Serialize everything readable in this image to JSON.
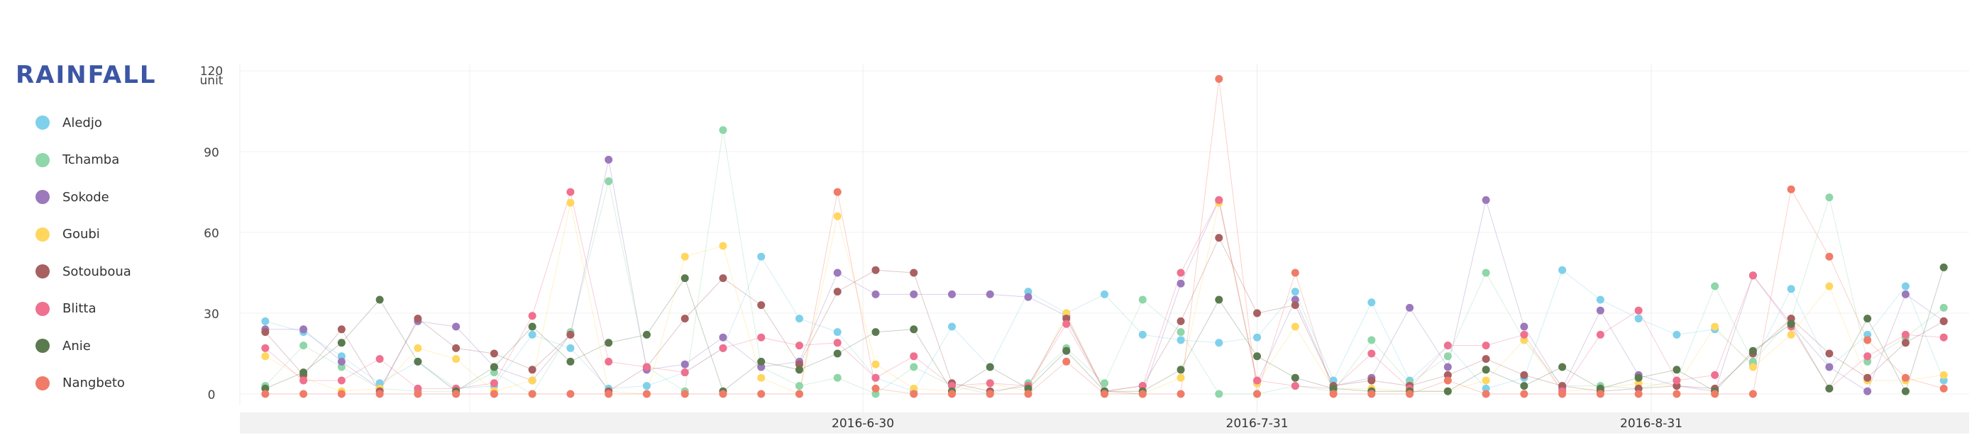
{
  "chart_data": {
    "type": "line",
    "title": "RAINFALL",
    "subtitle": "",
    "xlabel": "",
    "ylabel": "unit",
    "ylim": [
      0,
      120
    ],
    "yticks": [
      0,
      30,
      60,
      90,
      120
    ],
    "xlim": [
      "2016-05-12",
      "2016-09-25"
    ],
    "xticks": [
      "2016-6-30",
      "2016-7-31",
      "2016-8-31"
    ],
    "grid": true,
    "legend_position": "left",
    "x": [
      "2016-05-14",
      "2016-05-17",
      "2016-05-20",
      "2016-05-23",
      "2016-05-26",
      "2016-05-29",
      "2016-06-01",
      "2016-06-04",
      "2016-06-07",
      "2016-06-10",
      "2016-06-13",
      "2016-06-16",
      "2016-06-19",
      "2016-06-22",
      "2016-06-25",
      "2016-06-28",
      "2016-07-01",
      "2016-07-04",
      "2016-07-07",
      "2016-07-10",
      "2016-07-13",
      "2016-07-16",
      "2016-07-19",
      "2016-07-22",
      "2016-07-25",
      "2016-07-28",
      "2016-07-31",
      "2016-08-03",
      "2016-08-06",
      "2016-08-09",
      "2016-08-12",
      "2016-08-15",
      "2016-08-18",
      "2016-08-21",
      "2016-08-24",
      "2016-08-27",
      "2016-08-30",
      "2016-09-02",
      "2016-09-05",
      "2016-09-08",
      "2016-09-11",
      "2016-09-14",
      "2016-09-17",
      "2016-09-20",
      "2016-09-23"
    ],
    "series": [
      {
        "name": "Aledjo",
        "color": "#7fd0ea",
        "values": [
          27,
          23,
          14,
          4,
          12,
          2,
          3,
          22,
          17,
          2,
          3,
          8,
          17,
          51,
          28,
          23,
          6,
          1,
          25,
          10,
          38,
          30,
          37,
          22,
          20,
          19,
          21,
          38,
          5,
          34,
          5,
          18,
          2,
          6,
          46,
          35,
          28,
          22,
          24,
          11,
          39,
          10,
          22,
          40,
          5
        ]
      },
      {
        "name": "Tchamba",
        "color": "#8fd6a8",
        "values": [
          3,
          18,
          10,
          2,
          1,
          1,
          8,
          0,
          23,
          79,
          10,
          1,
          98,
          10,
          3,
          6,
          0,
          10,
          3,
          0,
          4,
          17,
          4,
          35,
          23,
          0,
          0,
          3,
          1,
          20,
          4,
          14,
          45,
          20,
          3,
          3,
          2,
          5,
          40,
          12,
          28,
          73,
          12,
          21,
          32
        ]
      },
      {
        "name": "Sokode",
        "color": "#9b79bb",
        "values": [
          24,
          24,
          12,
          2,
          27,
          25,
          10,
          5,
          22,
          87,
          9,
          11,
          21,
          10,
          12,
          45,
          37,
          37,
          37,
          37,
          36,
          29,
          1,
          0,
          41,
          72,
          4,
          35,
          3,
          6,
          32,
          10,
          72,
          25,
          2,
          31,
          7,
          3,
          1,
          44,
          26,
          10,
          1,
          37,
          27
        ]
      },
      {
        "name": "Goubi",
        "color": "#ffd75f",
        "values": [
          14,
          6,
          1,
          2,
          17,
          13,
          1,
          5,
          71,
          1,
          0,
          51,
          55,
          6,
          0,
          66,
          11,
          2,
          1,
          4,
          1,
          30,
          1,
          0,
          6,
          71,
          4,
          25,
          2,
          2,
          1,
          1,
          5,
          20,
          1,
          2,
          4,
          3,
          25,
          10,
          22,
          40,
          5,
          5,
          7
        ]
      },
      {
        "name": "Sotouboua",
        "color": "#a86060",
        "values": [
          23,
          7,
          24,
          1,
          28,
          17,
          15,
          9,
          22,
          1,
          10,
          28,
          43,
          33,
          11,
          38,
          46,
          45,
          4,
          1,
          3,
          28,
          1,
          3,
          27,
          58,
          30,
          33,
          3,
          5,
          3,
          7,
          13,
          7,
          3,
          1,
          2,
          3,
          2,
          15,
          28,
          15,
          6,
          19,
          27
        ]
      },
      {
        "name": "Blitta",
        "color": "#f0708f",
        "values": [
          17,
          5,
          5,
          13,
          2,
          2,
          4,
          29,
          75,
          12,
          10,
          8,
          17,
          21,
          18,
          19,
          6,
          14,
          3,
          4,
          3,
          26,
          1,
          3,
          45,
          72,
          5,
          3,
          2,
          15,
          2,
          18,
          18,
          22,
          1,
          22,
          31,
          5,
          7,
          44,
          25,
          2,
          14,
          22,
          21
        ]
      },
      {
        "name": "Anie",
        "color": "#5b7a4f",
        "values": [
          2,
          8,
          19,
          35,
          12,
          1,
          10,
          25,
          12,
          19,
          22,
          43,
          1,
          12,
          9,
          15,
          23,
          24,
          1,
          10,
          2,
          16,
          1,
          1,
          9,
          35,
          14,
          6,
          2,
          1,
          1,
          1,
          9,
          3,
          10,
          2,
          6,
          9,
          1,
          16,
          26,
          2,
          28,
          1,
          47
        ]
      },
      {
        "name": "Nangbeto",
        "color": "#f07b68",
        "values": [
          0,
          0,
          0,
          0,
          0,
          0,
          0,
          0,
          0,
          0,
          0,
          0,
          0,
          0,
          0,
          75,
          2,
          0,
          0,
          0,
          0,
          12,
          0,
          0,
          0,
          117,
          0,
          45,
          0,
          0,
          0,
          5,
          0,
          0,
          0,
          0,
          0,
          0,
          0,
          0,
          76,
          51,
          20,
          6,
          2
        ]
      }
    ]
  }
}
